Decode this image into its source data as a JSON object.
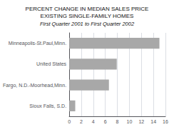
{
  "chart_data": {
    "type": "bar",
    "orientation": "horizontal",
    "title": "PERCENT CHANGE IN MEDIAN SALES PRICE\nEXISTING SINGLE-FAMILY HOMES",
    "subtitle": "First Quarter 2001 to First Quarter 2002",
    "categories": [
      "Sioux Falls, S.D.",
      "Fargo, N.D.-Moorhead,Minn.",
      "United States",
      "Minneapolis-St.Paul,Minn."
    ],
    "values": [
      1.0,
      6.6,
      7.9,
      15.0
    ],
    "color": "#a8a8a8",
    "xlim": [
      0,
      16
    ],
    "xticks": [
      0,
      2,
      4,
      6,
      8,
      10,
      12,
      14,
      16
    ],
    "grid": true
  }
}
